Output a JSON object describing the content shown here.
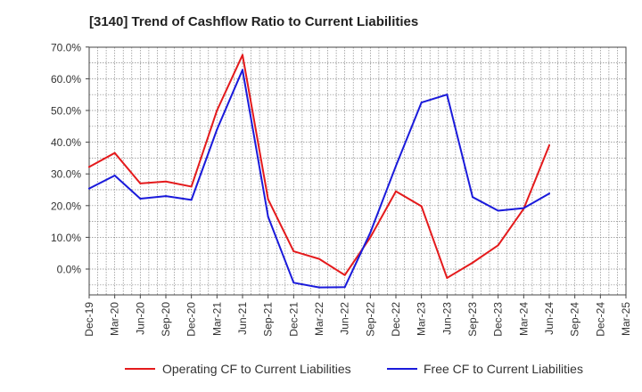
{
  "chart_data": {
    "type": "line",
    "title": "[3140]  Trend of Cashflow Ratio to Current Liabilities",
    "xlabel": "",
    "ylabel": "",
    "x_ticks": [
      "Dec-19",
      "Mar-20",
      "Jun-20",
      "Sep-20",
      "Dec-20",
      "Mar-21",
      "Jun-21",
      "Sep-21",
      "Dec-21",
      "Mar-22",
      "Jun-22",
      "Sep-22",
      "Dec-22",
      "Mar-23",
      "Jun-23",
      "Sep-23",
      "Dec-23",
      "Mar-24",
      "Jun-24",
      "Sep-24",
      "Dec-24",
      "Mar-25"
    ],
    "y_ticks": [
      "70.0%",
      "60.0%",
      "50.0%",
      "40.0%",
      "30.0%",
      "20.0%",
      "10.0%",
      "0.0%"
    ],
    "ylim": [
      -8.0,
      70.0
    ],
    "grid": true,
    "legend_position": "bottom",
    "series": [
      {
        "name": "Operating CF to Current Liabilities",
        "color": "#e41a1c",
        "values": [
          32.2,
          36.6,
          27.0,
          27.6,
          26.0,
          50.0,
          67.5,
          22.0,
          5.6,
          3.2,
          -1.9,
          10.0,
          24.5,
          19.8,
          -2.8,
          2.0,
          7.5,
          19.0,
          39.0,
          null,
          null,
          null
        ]
      },
      {
        "name": "Free CF to Current Liabilities",
        "color": "#1a1adb",
        "values": [
          25.4,
          29.5,
          22.2,
          23.0,
          21.8,
          44.0,
          62.8,
          16.5,
          -4.3,
          -5.8,
          -5.7,
          11.5,
          32.5,
          52.5,
          55.0,
          22.7,
          18.4,
          19.2,
          23.8,
          null,
          null,
          null
        ]
      }
    ]
  }
}
